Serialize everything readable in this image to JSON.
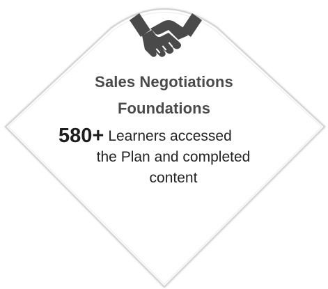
{
  "card": {
    "icon": "handshake-icon",
    "title_line1": "Sales Negotiations",
    "title_line2": "Foundations",
    "stat_value": "580+",
    "stat_line1": "Learners accessed",
    "stat_line2": "the Plan and completed",
    "stat_line3": "content",
    "colors": {
      "icon": "#4a4a4a",
      "title": "#4a4a4a",
      "text": "#222222",
      "border": "#d9d9d9"
    }
  }
}
